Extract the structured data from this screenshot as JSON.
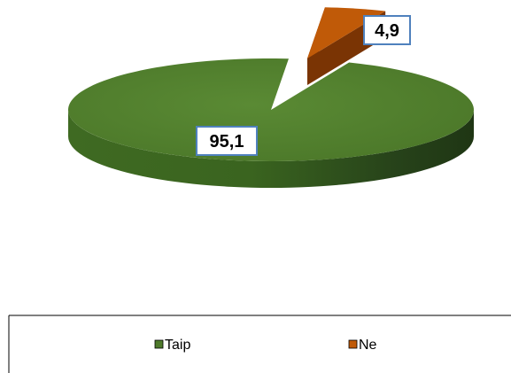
{
  "chart_data": {
    "type": "pie",
    "style": "3d-exploded",
    "labels": [
      "Taip",
      "Ne"
    ],
    "values": [
      95.1,
      4.9
    ],
    "value_labels": [
      "95,1",
      "4,9"
    ],
    "colors": [
      "#4e7a2b",
      "#c05a08"
    ],
    "legend_position": "bottom"
  }
}
